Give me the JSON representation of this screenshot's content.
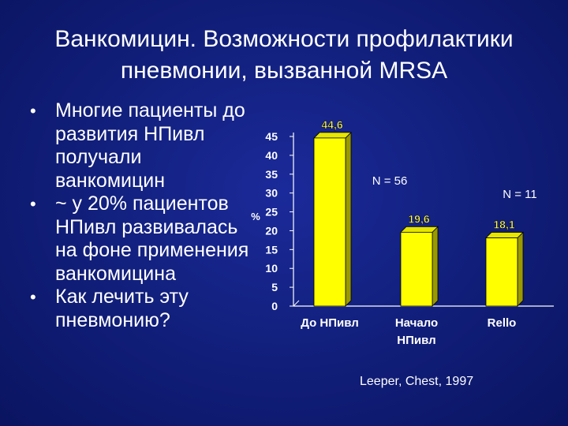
{
  "title": {
    "line1": "Ванкомицин. Возможности профилактики",
    "line2": "пневмонии, вызванной MRSA"
  },
  "bullets": [
    {
      "text": "Многие пациенты до\nразвития НПивл\nполучали\nванкомицин"
    },
    {
      "text": "~ у 20% пациентов\nНПивл развивалась\nна фоне применения\nванкомицина"
    },
    {
      "text": "Как лечить эту\nпневмонию?"
    }
  ],
  "source": "Leeper, Chest, 1997",
  "colors": {
    "background": "#12207e",
    "bar_fill": "#ffff00",
    "bar_side": "#9a9a00",
    "bar_top": "#e6e600",
    "value_label": "#ffff66",
    "text": "#ffffff"
  },
  "chart_data": {
    "type": "bar",
    "categories": [
      "До НПивл",
      "Начало\nНПивл",
      "Rello"
    ],
    "values": [
      44.6,
      19.6,
      18.1
    ],
    "value_labels": [
      "44,6",
      "19,6",
      "18,1"
    ],
    "ylabel": "%",
    "ylim": [
      0,
      45
    ],
    "yticks": [
      0,
      5,
      10,
      15,
      20,
      25,
      30,
      35,
      40,
      45
    ],
    "annotations": [
      "N = 56",
      "N = 11"
    ],
    "grid": false,
    "legend": "none"
  }
}
